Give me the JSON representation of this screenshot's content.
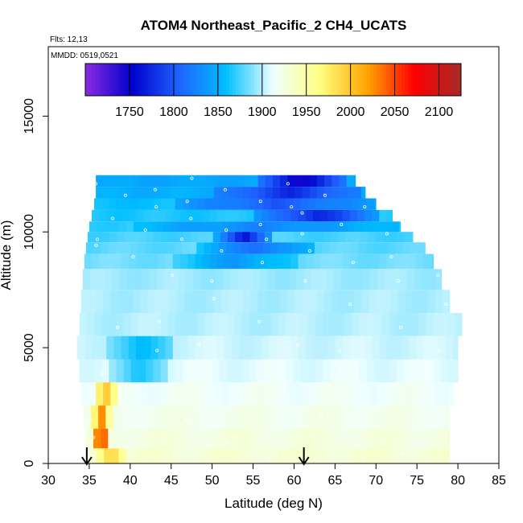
{
  "chart_data": {
    "type": "heatmap",
    "title": "ATOM4 Northeast_Pacific_2 CH4_UCATS",
    "flights_label": "Flts: 12,13",
    "dates_label": "MMDD: 0519,0521",
    "xlabel": "Latitude (deg N)",
    "ylabel": "Altitude (m)",
    "xlim": [
      30,
      85
    ],
    "ylim": [
      0,
      18000
    ],
    "x_ticks": [
      "30",
      "35",
      "40",
      "45",
      "50",
      "55",
      "60",
      "65",
      "70",
      "75",
      "80",
      "85"
    ],
    "y_ticks": [
      "0",
      "5000",
      "10000",
      "15000"
    ],
    "colorbar": {
      "min": 1700,
      "max": 2125,
      "tick_values": [
        1750,
        1800,
        1850,
        1900,
        1950,
        2000,
        2050,
        2100
      ],
      "tick_labels": [
        "1750",
        "1800",
        "1850",
        "1900",
        "1950",
        "2000",
        "2050",
        "2100"
      ],
      "colors": [
        "#8a2be2",
        "#0000cd",
        "#1e64ff",
        "#00bfff",
        "#f0ffff",
        "#ffff80",
        "#ffa500",
        "#ff0000",
        "#a52a2a"
      ]
    },
    "marker_latitudes": [
      34.7,
      61.2
    ],
    "altitude_bands": [
      {
        "alt": 12200,
        "lat_min": 35.8,
        "lat_max": 67.5,
        "base": 1845,
        "hot": [
          [
            55,
            66,
            1745
          ]
        ]
      },
      {
        "alt": 11700,
        "lat_min": 35.8,
        "lat_max": 68.7,
        "base": 1850,
        "hot": [
          [
            50,
            68,
            1775
          ]
        ]
      },
      {
        "alt": 11200,
        "lat_min": 35.6,
        "lat_max": 70.0,
        "base": 1860,
        "hot": [
          [
            45,
            70,
            1800
          ]
        ]
      },
      {
        "alt": 10700,
        "lat_min": 35.3,
        "lat_max": 72.0,
        "base": 1865,
        "hot": [
          [
            55,
            70,
            1770
          ]
        ]
      },
      {
        "alt": 10200,
        "lat_min": 35.0,
        "lat_max": 73.0,
        "base": 1870,
        "hot": [
          [
            40,
            72,
            1825
          ]
        ]
      },
      {
        "alt": 9800,
        "lat_min": 34.8,
        "lat_max": 74.5,
        "base": 1875,
        "hot": [
          [
            50,
            57,
            1765
          ]
        ]
      },
      {
        "alt": 9300,
        "lat_min": 34.6,
        "lat_max": 76.0,
        "base": 1880,
        "hot": [
          [
            48,
            62,
            1810
          ]
        ]
      },
      {
        "alt": 8800,
        "lat_min": 34.4,
        "lat_max": 77.0,
        "base": 1885,
        "hot": [
          [
            45,
            60,
            1835
          ]
        ]
      },
      {
        "alt": 8000,
        "lat_min": 34.2,
        "lat_max": 78.0,
        "base": 1895,
        "hot": []
      },
      {
        "alt": 7000,
        "lat_min": 34.0,
        "lat_max": 79.0,
        "base": 1898,
        "hot": []
      },
      {
        "alt": 6000,
        "lat_min": 33.8,
        "lat_max": 80.5,
        "base": 1900,
        "hot": []
      },
      {
        "alt": 5000,
        "lat_min": 33.5,
        "lat_max": 80.0,
        "base": 1905,
        "hot": [
          [
            37,
            45,
            1850
          ]
        ]
      },
      {
        "alt": 4000,
        "lat_min": 33.8,
        "lat_max": 80.0,
        "base": 1910,
        "hot": [
          [
            37,
            44,
            1860
          ]
        ]
      },
      {
        "alt": 3000,
        "lat_min": 34.0,
        "lat_max": 79.5,
        "base": 1915,
        "hot": [
          [
            35,
            38,
            2000
          ]
        ]
      },
      {
        "alt": 2000,
        "lat_min": 34.3,
        "lat_max": 79.0,
        "base": 1920,
        "hot": [
          [
            35,
            37,
            2030
          ]
        ]
      },
      {
        "alt": 1000,
        "lat_min": 34.6,
        "lat_max": 79.0,
        "base": 1925,
        "hot": [
          [
            35,
            37,
            2080
          ]
        ]
      },
      {
        "alt": 300,
        "lat_min": 35.0,
        "lat_max": 79.0,
        "base": 1930,
        "hot": [
          [
            35.5,
            39,
            2000
          ]
        ]
      }
    ]
  }
}
